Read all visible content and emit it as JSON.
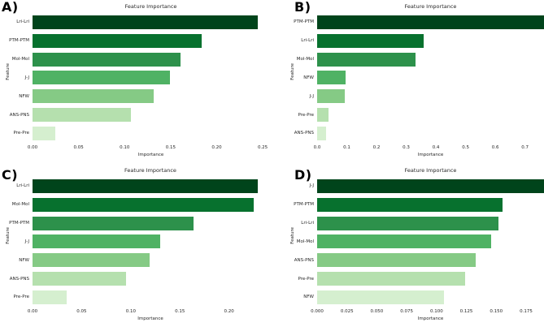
{
  "bar_colors": [
    "#00441b",
    "#07712e",
    "#2d914b",
    "#4fb264",
    "#85ca85",
    "#b5e0ae",
    "#d5efcf"
  ],
  "chart_data": [
    {
      "type": "bar",
      "orientation": "horizontal",
      "panel_label": "A)",
      "title": "Feature Importance",
      "xlabel": "Importance",
      "ylabel": "Feature",
      "categories": [
        "Lri-Lri",
        "PTM-PTM",
        "Mol-Mol",
        "J-J",
        "NFW",
        "ANS-PNS",
        "Pre-Pre"
      ],
      "values": [
        0.245,
        0.184,
        0.161,
        0.149,
        0.132,
        0.107,
        0.025
      ],
      "xlim": [
        0,
        0.257
      ],
      "xticks": [
        "0.00",
        "0.05",
        "0.10",
        "0.15",
        "0.20",
        "0.25"
      ],
      "grid": false,
      "legend": false
    },
    {
      "type": "bar",
      "orientation": "horizontal",
      "panel_label": "B)",
      "title": "Feature Importance",
      "xlabel": "Importance",
      "ylabel": "Feature",
      "categories": [
        "PTM-PTM",
        "Lri-Lri",
        "Mol-Mol",
        "NFW",
        "J-J",
        "Pre-Pre",
        "ANS-PNS"
      ],
      "values": [
        0.764,
        0.36,
        0.33,
        0.095,
        0.093,
        0.038,
        0.031
      ],
      "xlim": [
        0,
        0.764
      ],
      "xticks": [
        "0.0",
        "0.1",
        "0.2",
        "0.3",
        "0.4",
        "0.5",
        "0.6",
        "0.7"
      ],
      "grid": false,
      "legend": false
    },
    {
      "type": "bar",
      "orientation": "horizontal",
      "panel_label": "C)",
      "title": "Feature Importance",
      "xlabel": "Importance",
      "ylabel": "Feature",
      "categories": [
        "Lri-Lri",
        "Mol-Mol",
        "PTM-PTM",
        "J-J",
        "NFW",
        "ANS-PNS",
        "Pre-Pre"
      ],
      "values": [
        0.229,
        0.225,
        0.164,
        0.13,
        0.119,
        0.095,
        0.035
      ],
      "xlim": [
        0,
        0.24
      ],
      "xticks": [
        "0.00",
        "0.05",
        "0.10",
        "0.15",
        "0.20"
      ],
      "grid": false,
      "legend": false
    },
    {
      "type": "bar",
      "orientation": "horizontal",
      "panel_label": "D)",
      "title": "Feature Importance",
      "xlabel": "Importance",
      "ylabel": "Feature",
      "categories": [
        "J-J",
        "PTM-PTM",
        "Lri-Lri",
        "Mol-Mol",
        "ANS-PNS",
        "Pre-Pre",
        "NFW"
      ],
      "values": [
        0.19,
        0.155,
        0.152,
        0.146,
        0.133,
        0.124,
        0.106
      ],
      "xlim": [
        0,
        0.19
      ],
      "xticks": [
        "0.000",
        "0.025",
        "0.050",
        "0.075",
        "0.100",
        "0.125",
        "0.150",
        "0.175"
      ],
      "grid": false,
      "legend": false
    }
  ]
}
